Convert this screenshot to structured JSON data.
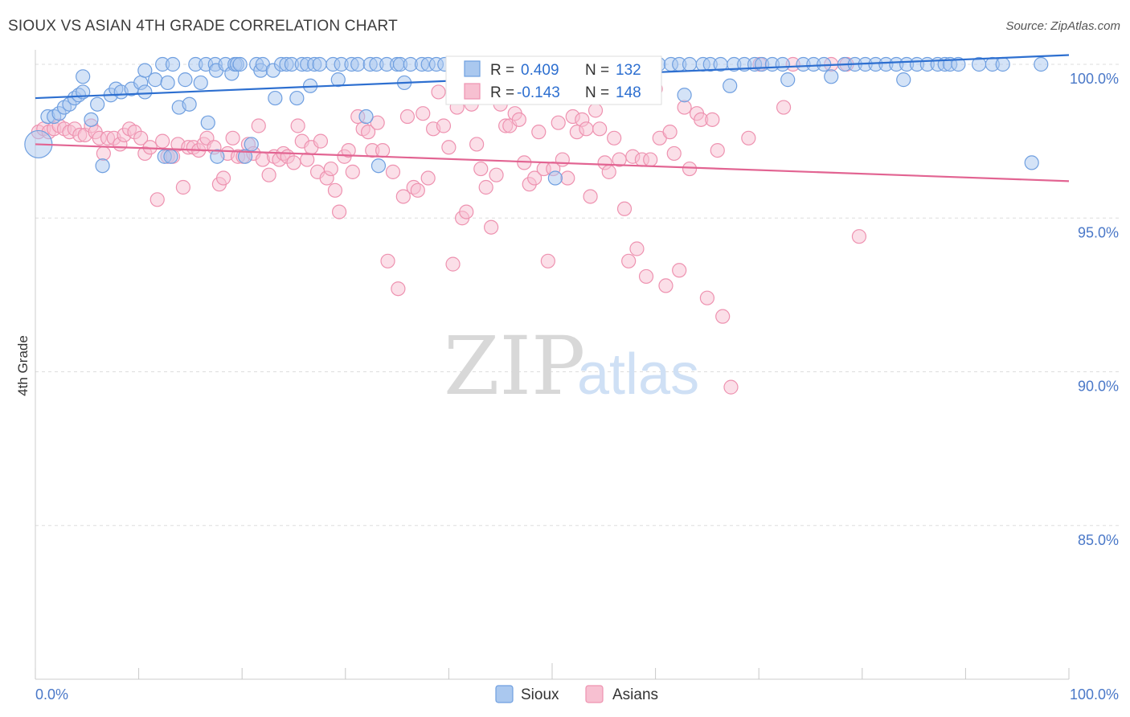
{
  "title": "SIOUX VS ASIAN 4TH GRADE CORRELATION CHART",
  "source": "Source: ZipAtlas.com",
  "watermark": {
    "part1": "ZIP",
    "part2": "atlas"
  },
  "colors": {
    "sioux_fill": "#aac8ef",
    "sioux_stroke": "#6f9fe0",
    "sioux_line": "#2d6fd0",
    "asians_fill": "#f7c0d1",
    "asians_stroke": "#ee92b0",
    "asians_line": "#e26492",
    "tick_label": "#4a78c8",
    "grid": "#dddddd"
  },
  "stats": {
    "r_label": "R =",
    "n_label": "N =",
    "sioux": {
      "r": "0.409",
      "n": "132"
    },
    "asians": {
      "r": "-0.143",
      "n": "148"
    }
  },
  "chart_data": {
    "type": "scatter",
    "title": "SIOUX VS ASIAN 4TH GRADE CORRELATION CHART",
    "xlabel": "",
    "ylabel": "4th Grade",
    "xlim": [
      0,
      100
    ],
    "ylim": [
      80.5,
      100.8
    ],
    "x_tick_labels": [
      "0.0%",
      "100.0%"
    ],
    "y_ticks": [
      100,
      95,
      90,
      85
    ],
    "y_tick_labels": [
      "100.0%",
      "95.0%",
      "90.0%",
      "85.0%"
    ],
    "grid": "horizontal dashed",
    "legend_position": "bottom-center",
    "series": [
      {
        "name": "Sioux",
        "trend": {
          "x": [
            0,
            100
          ],
          "y": [
            98.9,
            100.3
          ]
        },
        "points": [
          [
            0.3,
            97.4
          ],
          [
            1.2,
            98.3
          ],
          [
            1.8,
            98.3
          ],
          [
            2.3,
            98.4
          ],
          [
            2.8,
            98.6
          ],
          [
            3.3,
            98.7
          ],
          [
            3.8,
            98.9
          ],
          [
            4.2,
            99.0
          ],
          [
            4.6,
            99.1
          ],
          [
            4.6,
            99.6
          ],
          [
            5.4,
            98.2
          ],
          [
            6.0,
            98.7
          ],
          [
            6.5,
            96.7
          ],
          [
            7.3,
            99.0
          ],
          [
            7.8,
            99.2
          ],
          [
            8.3,
            99.1
          ],
          [
            9.3,
            99.2
          ],
          [
            10.2,
            99.4
          ],
          [
            10.6,
            99.1
          ],
          [
            10.6,
            99.8
          ],
          [
            11.6,
            99.5
          ],
          [
            12.3,
            100.0
          ],
          [
            12.5,
            97.0
          ],
          [
            12.8,
            99.4
          ],
          [
            13.1,
            97.0
          ],
          [
            13.3,
            100.0
          ],
          [
            13.9,
            98.6
          ],
          [
            14.5,
            99.5
          ],
          [
            14.9,
            98.7
          ],
          [
            15.5,
            100.0
          ],
          [
            16.0,
            99.4
          ],
          [
            16.5,
            100.0
          ],
          [
            16.7,
            98.1
          ],
          [
            17.4,
            100.0
          ],
          [
            17.5,
            99.8
          ],
          [
            17.6,
            97.0
          ],
          [
            18.4,
            100.0
          ],
          [
            19.0,
            99.7
          ],
          [
            19.3,
            100.0
          ],
          [
            19.5,
            100.0
          ],
          [
            19.8,
            100.0
          ],
          [
            20.3,
            97.0
          ],
          [
            20.9,
            97.4
          ],
          [
            21.4,
            100.0
          ],
          [
            21.8,
            99.8
          ],
          [
            22.0,
            100.0
          ],
          [
            23.0,
            99.8
          ],
          [
            23.2,
            98.9
          ],
          [
            23.8,
            100.0
          ],
          [
            24.3,
            100.0
          ],
          [
            24.8,
            100.0
          ],
          [
            25.3,
            98.9
          ],
          [
            25.8,
            100.0
          ],
          [
            26.3,
            100.0
          ],
          [
            26.6,
            99.3
          ],
          [
            27.0,
            100.0
          ],
          [
            27.5,
            100.0
          ],
          [
            28.8,
            100.0
          ],
          [
            29.3,
            99.5
          ],
          [
            29.6,
            100.0
          ],
          [
            30.6,
            100.0
          ],
          [
            31.2,
            100.0
          ],
          [
            32.0,
            98.3
          ],
          [
            32.4,
            100.0
          ],
          [
            33.0,
            100.0
          ],
          [
            33.2,
            96.7
          ],
          [
            34.0,
            100.0
          ],
          [
            35.0,
            100.0
          ],
          [
            35.3,
            100.0
          ],
          [
            35.7,
            99.4
          ],
          [
            36.3,
            100.0
          ],
          [
            37.4,
            100.0
          ],
          [
            38.0,
            100.0
          ],
          [
            38.8,
            100.0
          ],
          [
            39.6,
            100.0
          ],
          [
            40.8,
            100.0
          ],
          [
            41.6,
            100.0
          ],
          [
            42.8,
            100.0
          ],
          [
            43.2,
            100.0
          ],
          [
            44.3,
            100.0
          ],
          [
            44.8,
            100.0
          ],
          [
            45.3,
            100.0
          ],
          [
            46.3,
            100.0
          ],
          [
            46.7,
            100.0
          ],
          [
            47.8,
            100.0
          ],
          [
            48.7,
            100.0
          ],
          [
            49.6,
            100.0
          ],
          [
            50.3,
            96.3
          ],
          [
            51.3,
            100.0
          ],
          [
            52.3,
            100.0
          ],
          [
            53.3,
            100.0
          ],
          [
            54.6,
            100.0
          ],
          [
            55.3,
            100.0
          ],
          [
            56.6,
            100.0
          ],
          [
            57.3,
            100.0
          ],
          [
            58.3,
            100.0
          ],
          [
            59.3,
            100.0
          ],
          [
            60.3,
            100.0
          ],
          [
            61.5,
            100.0
          ],
          [
            62.3,
            100.0
          ],
          [
            62.8,
            99.0
          ],
          [
            63.3,
            100.0
          ],
          [
            64.6,
            100.0
          ],
          [
            65.3,
            100.0
          ],
          [
            66.3,
            100.0
          ],
          [
            67.2,
            99.3
          ],
          [
            67.6,
            100.0
          ],
          [
            68.6,
            100.0
          ],
          [
            69.6,
            100.0
          ],
          [
            70.3,
            100.0
          ],
          [
            71.3,
            100.0
          ],
          [
            72.3,
            100.0
          ],
          [
            72.8,
            99.5
          ],
          [
            74.3,
            100.0
          ],
          [
            75.3,
            100.0
          ],
          [
            76.3,
            100.0
          ],
          [
            77.0,
            99.6
          ],
          [
            78.3,
            100.0
          ],
          [
            79.3,
            100.0
          ],
          [
            80.3,
            100.0
          ],
          [
            81.3,
            100.0
          ],
          [
            82.3,
            100.0
          ],
          [
            83.3,
            100.0
          ],
          [
            84.0,
            99.5
          ],
          [
            84.3,
            100.0
          ],
          [
            85.3,
            100.0
          ],
          [
            86.3,
            100.0
          ],
          [
            87.3,
            100.0
          ],
          [
            88.0,
            100.0
          ],
          [
            88.5,
            100.0
          ],
          [
            89.3,
            100.0
          ],
          [
            91.3,
            100.0
          ],
          [
            92.6,
            100.0
          ],
          [
            93.6,
            100.0
          ],
          [
            96.4,
            96.8
          ],
          [
            97.3,
            100.0
          ]
        ]
      },
      {
        "name": "Asians",
        "trend": {
          "x": [
            0,
            100
          ],
          "y": [
            97.4,
            96.2
          ]
        },
        "points": [
          [
            0.3,
            97.8
          ],
          [
            0.8,
            97.9
          ],
          [
            1.3,
            97.8
          ],
          [
            1.8,
            97.9
          ],
          [
            2.3,
            98.0
          ],
          [
            2.8,
            97.9
          ],
          [
            3.3,
            97.8
          ],
          [
            3.8,
            97.9
          ],
          [
            4.3,
            97.7
          ],
          [
            4.8,
            97.7
          ],
          [
            5.4,
            98.0
          ],
          [
            5.8,
            97.8
          ],
          [
            6.2,
            97.6
          ],
          [
            6.6,
            97.1
          ],
          [
            7.0,
            97.6
          ],
          [
            7.6,
            97.6
          ],
          [
            8.2,
            97.4
          ],
          [
            8.6,
            97.7
          ],
          [
            9.1,
            97.9
          ],
          [
            9.6,
            97.8
          ],
          [
            10.2,
            97.6
          ],
          [
            10.6,
            97.1
          ],
          [
            11.1,
            97.3
          ],
          [
            11.8,
            95.6
          ],
          [
            12.3,
            97.5
          ],
          [
            12.8,
            97.0
          ],
          [
            13.3,
            97.0
          ],
          [
            13.8,
            97.4
          ],
          [
            14.3,
            96.0
          ],
          [
            14.8,
            97.3
          ],
          [
            15.3,
            97.3
          ],
          [
            15.8,
            97.2
          ],
          [
            16.3,
            97.4
          ],
          [
            16.6,
            97.6
          ],
          [
            17.3,
            97.3
          ],
          [
            17.8,
            96.1
          ],
          [
            18.2,
            96.3
          ],
          [
            18.6,
            97.1
          ],
          [
            19.1,
            97.6
          ],
          [
            19.6,
            97.0
          ],
          [
            20.1,
            97.0
          ],
          [
            20.6,
            97.4
          ],
          [
            21.1,
            97.1
          ],
          [
            21.6,
            98.0
          ],
          [
            22.0,
            96.9
          ],
          [
            22.6,
            96.4
          ],
          [
            23.1,
            97.0
          ],
          [
            23.6,
            96.9
          ],
          [
            24.0,
            97.1
          ],
          [
            24.4,
            97.0
          ],
          [
            25.0,
            96.8
          ],
          [
            25.4,
            98.0
          ],
          [
            25.8,
            97.5
          ],
          [
            26.3,
            96.9
          ],
          [
            26.7,
            97.3
          ],
          [
            27.3,
            96.5
          ],
          [
            27.6,
            97.5
          ],
          [
            28.2,
            96.3
          ],
          [
            28.6,
            96.6
          ],
          [
            29.0,
            95.9
          ],
          [
            29.4,
            95.2
          ],
          [
            29.9,
            97.0
          ],
          [
            30.3,
            97.2
          ],
          [
            30.7,
            96.5
          ],
          [
            31.2,
            98.3
          ],
          [
            31.7,
            97.9
          ],
          [
            32.2,
            97.8
          ],
          [
            32.6,
            97.2
          ],
          [
            33.1,
            98.1
          ],
          [
            33.6,
            97.2
          ],
          [
            34.1,
            93.6
          ],
          [
            34.6,
            96.5
          ],
          [
            35.1,
            92.7
          ],
          [
            35.6,
            95.7
          ],
          [
            36.0,
            98.3
          ],
          [
            36.6,
            96.0
          ],
          [
            37.0,
            95.9
          ],
          [
            37.5,
            98.4
          ],
          [
            38.0,
            96.3
          ],
          [
            38.5,
            97.9
          ],
          [
            39.0,
            99.1
          ],
          [
            39.5,
            98.0
          ],
          [
            40.0,
            97.3
          ],
          [
            40.4,
            93.5
          ],
          [
            40.8,
            98.6
          ],
          [
            41.3,
            95.0
          ],
          [
            41.7,
            95.2
          ],
          [
            42.2,
            98.7
          ],
          [
            42.7,
            97.4
          ],
          [
            43.1,
            96.6
          ],
          [
            43.6,
            96.0
          ],
          [
            44.1,
            94.7
          ],
          [
            44.6,
            96.4
          ],
          [
            45.0,
            98.7
          ],
          [
            45.5,
            98.0
          ],
          [
            45.9,
            98.0
          ],
          [
            46.4,
            98.4
          ],
          [
            46.8,
            98.2
          ],
          [
            47.3,
            96.8
          ],
          [
            47.8,
            96.1
          ],
          [
            48.3,
            96.3
          ],
          [
            48.7,
            97.8
          ],
          [
            49.2,
            96.6
          ],
          [
            49.6,
            93.6
          ],
          [
            50.1,
            96.6
          ],
          [
            50.6,
            98.1
          ],
          [
            51.0,
            96.9
          ],
          [
            51.5,
            96.3
          ],
          [
            52.0,
            98.3
          ],
          [
            52.4,
            97.8
          ],
          [
            52.9,
            98.2
          ],
          [
            53.3,
            97.9
          ],
          [
            53.7,
            95.7
          ],
          [
            54.2,
            98.5
          ],
          [
            54.6,
            97.9
          ],
          [
            55.1,
            96.8
          ],
          [
            55.5,
            96.5
          ],
          [
            56.0,
            97.6
          ],
          [
            56.5,
            96.9
          ],
          [
            57.0,
            95.3
          ],
          [
            57.4,
            93.6
          ],
          [
            57.8,
            97.0
          ],
          [
            58.2,
            94.0
          ],
          [
            58.7,
            96.9
          ],
          [
            59.1,
            93.1
          ],
          [
            59.5,
            96.9
          ],
          [
            60.0,
            99.2
          ],
          [
            60.4,
            97.6
          ],
          [
            61.0,
            92.8
          ],
          [
            61.4,
            97.8
          ],
          [
            61.8,
            97.1
          ],
          [
            62.3,
            93.3
          ],
          [
            62.8,
            98.6
          ],
          [
            63.3,
            96.6
          ],
          [
            64.0,
            98.4
          ],
          [
            64.4,
            98.2
          ],
          [
            65.0,
            92.4
          ],
          [
            65.5,
            98.2
          ],
          [
            66.0,
            97.2
          ],
          [
            66.5,
            91.8
          ],
          [
            67.3,
            89.5
          ],
          [
            69.0,
            97.6
          ],
          [
            70.1,
            100.0
          ],
          [
            72.4,
            98.6
          ],
          [
            73.3,
            100.0
          ],
          [
            77.0,
            100.0
          ],
          [
            78.5,
            100.0
          ],
          [
            79.7,
            94.4
          ]
        ]
      }
    ]
  }
}
